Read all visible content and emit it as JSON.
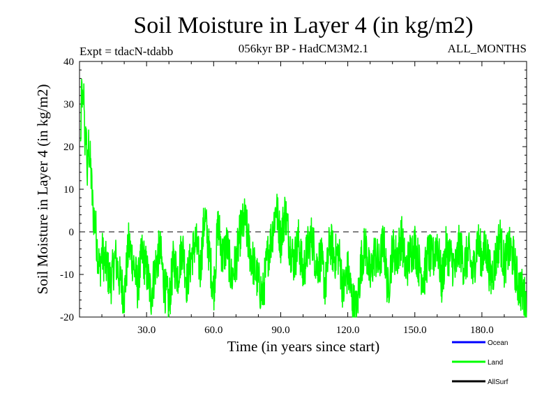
{
  "chart_data": {
    "type": "line",
    "title": "Soil Moisture in Layer 4 (in kg/m2)",
    "subtitle_left": "Expt = tdacN-tdabb",
    "subtitle_center": "056kyr BP - HadCM3M2.1",
    "subtitle_right": "ALL_MONTHS",
    "xlabel": "Time (in years since start)",
    "ylabel": "Soil Moisture in Layer 4 (in kg/m2)",
    "xlim": [
      0,
      200
    ],
    "ylim": [
      -20,
      40
    ],
    "x_ticks": [
      {
        "value": 30,
        "label": "30.0"
      },
      {
        "value": 60,
        "label": "60.0"
      },
      {
        "value": 90,
        "label": "90.0"
      },
      {
        "value": 120,
        "label": "120.0"
      },
      {
        "value": 150,
        "label": "150.0"
      },
      {
        "value": 180,
        "label": "180.0"
      }
    ],
    "y_ticks": [
      {
        "value": -20,
        "label": "-20"
      },
      {
        "value": -10,
        "label": "-10"
      },
      {
        "value": 0,
        "label": "0"
      },
      {
        "value": 10,
        "label": "10"
      },
      {
        "value": 20,
        "label": "20"
      },
      {
        "value": 30,
        "label": "30"
      },
      {
        "value": 40,
        "label": "40"
      }
    ],
    "reference_line": {
      "y": 0,
      "style": "dashed"
    },
    "legend": {
      "placement": "bottom-right",
      "entries": [
        {
          "name": "Ocean",
          "color": "#0000ff"
        },
        {
          "name": "Land",
          "color": "#00ff00"
        },
        {
          "name": "AllSurf",
          "color": "#000000"
        }
      ]
    },
    "series": [
      {
        "name": "Land",
        "color": "#00ff00",
        "x": [
          0.5,
          1,
          1.5,
          2,
          2.5,
          3,
          3.5,
          4,
          5,
          6,
          7,
          8,
          9,
          10,
          12,
          14,
          16,
          18,
          20,
          22,
          24,
          26,
          28,
          30,
          32,
          34,
          36,
          38,
          40,
          42,
          44,
          46,
          48,
          50,
          52,
          54,
          56,
          58,
          60,
          62,
          64,
          66,
          68,
          70,
          72,
          74,
          76,
          78,
          80,
          82,
          84,
          86,
          88,
          90,
          92,
          94,
          96,
          98,
          100,
          102,
          104,
          106,
          108,
          110,
          112,
          114,
          116,
          118,
          120,
          122,
          124,
          126,
          128,
          130,
          132,
          134,
          136,
          138,
          140,
          142,
          144,
          146,
          148,
          150,
          152,
          154,
          156,
          158,
          160,
          162,
          164,
          166,
          168,
          170,
          172,
          174,
          176,
          178,
          180,
          182,
          184,
          186,
          188,
          190,
          192,
          194,
          196,
          198,
          200
        ],
        "y": [
          20,
          35,
          28,
          33,
          18,
          25,
          12,
          21,
          15,
          5,
          2,
          -4,
          -9,
          -5,
          -8,
          -12,
          -6,
          -11,
          -15,
          -3,
          -7,
          -13,
          -5,
          -9,
          -15,
          -8,
          -4,
          -13,
          -17,
          -7,
          -10,
          -3,
          -12,
          -6,
          -2,
          -9,
          4,
          -5,
          -14,
          2,
          -6,
          -3,
          -11,
          -7,
          0,
          3,
          -4,
          -8,
          -12,
          -15,
          -6,
          -1,
          6,
          -2,
          5,
          -3,
          -7,
          -2,
          -10,
          -4,
          -1,
          -8,
          -6,
          -13,
          -2,
          -6,
          -5,
          -14,
          -9,
          -16,
          -19,
          -7,
          -3,
          -11,
          -5,
          -8,
          -2,
          -14,
          -4,
          -6,
          -1,
          -9,
          -5,
          -3,
          -8,
          -11,
          -5,
          -7,
          -2,
          -12,
          -4,
          -6,
          -9,
          -3,
          -8,
          -5,
          -10,
          -2,
          -6,
          -4,
          -11,
          -7,
          -1,
          -8,
          -4,
          -6,
          -12,
          -14,
          -17
        ]
      }
    ]
  }
}
